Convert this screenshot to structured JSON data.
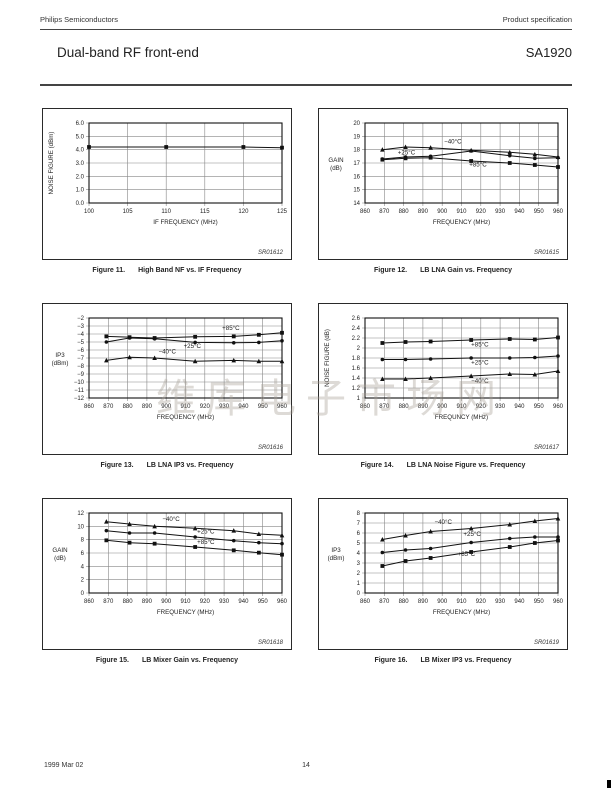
{
  "header": {
    "left": "Philips Semiconductors",
    "right": "Product specification",
    "title": "Dual-band RF front-end",
    "part": "SA1920"
  },
  "footer": {
    "date": "1999 Mar 02",
    "page": "14"
  },
  "watermark": "维库电子市场网",
  "chart_data": [
    {
      "type": "line",
      "figure": "Figure 11.",
      "caption": "High Band NF vs. IF Frequency",
      "code": "SR01612",
      "xlabel": "IF FREQUENCY (MHz)",
      "ylabel": "NOISE FIGURE (dBm)",
      "ylabel_rotated": true,
      "xlim": [
        100,
        125
      ],
      "xticks": [
        100,
        105,
        110,
        115,
        120,
        125
      ],
      "ylim": [
        0,
        6
      ],
      "ytick_vals": [
        0,
        1,
        2,
        3,
        4,
        5,
        6
      ],
      "ytick_labels": [
        "0.0",
        "1.0",
        "2.0",
        "3.0",
        "4.0",
        "5.0",
        "6.0"
      ],
      "grid": true,
      "legend_position": "none",
      "series": [
        {
          "name": "",
          "marker": "square",
          "x": [
            100,
            110,
            120,
            125
          ],
          "y": [
            4.2,
            4.2,
            4.2,
            4.15
          ],
          "label_at": null
        }
      ]
    },
    {
      "type": "line",
      "figure": "Figure 12.",
      "caption": "LB LNA Gain vs. Frequency",
      "code": "SR01615",
      "xlabel": "FREQUENCY (MHz)",
      "ylabel": "GAIN (dB)",
      "ylabel_rotated": false,
      "xlim": [
        860,
        960
      ],
      "xticks": [
        860,
        870,
        880,
        890,
        900,
        910,
        920,
        930,
        940,
        950,
        960
      ],
      "ylim": [
        14,
        20
      ],
      "ytick_vals": [
        14,
        15,
        16,
        17,
        18,
        19,
        20
      ],
      "ytick_labels": [
        "14",
        "15",
        "16",
        "17",
        "18",
        "19",
        "20"
      ],
      "grid": true,
      "legend_position": "inline",
      "series": [
        {
          "name": "−40°C",
          "marker": "triangle",
          "x": [
            869,
            881,
            894,
            915,
            935,
            948,
            960
          ],
          "y": [
            18.0,
            18.2,
            18.15,
            17.95,
            17.8,
            17.65,
            17.45
          ],
          "label_at": [
            901,
            18.45
          ]
        },
        {
          "name": "+25°C",
          "marker": "dot",
          "x": [
            869,
            881,
            894,
            915,
            935,
            948,
            960
          ],
          "y": [
            17.3,
            17.45,
            17.5,
            17.9,
            17.55,
            17.35,
            17.4
          ],
          "label_at": [
            877,
            17.62
          ]
        },
        {
          "name": "+85°C",
          "marker": "square",
          "x": [
            869,
            881,
            894,
            915,
            935,
            948,
            960
          ],
          "y": [
            17.25,
            17.35,
            17.4,
            17.15,
            17.0,
            16.85,
            16.7
          ],
          "label_at": [
            914,
            16.72
          ]
        }
      ]
    },
    {
      "type": "line",
      "figure": "Figure 13.",
      "caption": "LB LNA IP3 vs. Frequency",
      "code": "SR01616",
      "xlabel": "FREQUENCY (MHz)",
      "ylabel": "IP3 (dBm)",
      "ylabel_rotated": false,
      "xlim": [
        860,
        960
      ],
      "xticks": [
        860,
        870,
        880,
        890,
        900,
        910,
        920,
        930,
        940,
        950,
        960
      ],
      "ylim": [
        -12,
        -2
      ],
      "ytick_vals": [
        -12,
        -11,
        -10,
        -9,
        -8,
        -7,
        -6,
        -5,
        -4,
        -3,
        -2
      ],
      "ytick_labels": [
        "−12",
        "−11",
        "−10",
        "−9",
        "−8",
        "−7",
        "−6",
        "−5",
        "−4",
        "−3",
        "−2"
      ],
      "grid": true,
      "legend_position": "inline",
      "series": [
        {
          "name": "+85°C",
          "marker": "square",
          "x": [
            869,
            881,
            894,
            915,
            935,
            948,
            960
          ],
          "y": [
            -4.3,
            -4.4,
            -4.5,
            -4.35,
            -4.3,
            -4.1,
            -3.85
          ],
          "label_at": [
            929,
            -3.5
          ]
        },
        {
          "name": "+25°C",
          "marker": "dot",
          "x": [
            869,
            881,
            894,
            915,
            935,
            948,
            960
          ],
          "y": [
            -5.0,
            -4.5,
            -4.6,
            -5.05,
            -5.1,
            -5.05,
            -4.85
          ],
          "label_at": [
            909,
            -5.75
          ]
        },
        {
          "name": "−40°C",
          "marker": "triangle",
          "x": [
            869,
            881,
            894,
            915,
            935,
            948,
            960
          ],
          "y": [
            -7.3,
            -6.9,
            -7.0,
            -7.4,
            -7.3,
            -7.4,
            -7.4
          ],
          "label_at": [
            896,
            -6.45
          ]
        }
      ]
    },
    {
      "type": "line",
      "figure": "Figure 14.",
      "caption": "LB LNA Noise Figure vs. Frequency",
      "code": "SR01617",
      "xlabel": "FREQUNCY (MHz)",
      "ylabel": "NOISE FIGURE (dB)",
      "ylabel_rotated": true,
      "xlim": [
        860,
        960
      ],
      "xticks": [
        860,
        870,
        880,
        890,
        900,
        910,
        920,
        930,
        940,
        950,
        960
      ],
      "ylim": [
        1,
        2.6
      ],
      "ytick_vals": [
        1,
        1.2,
        1.4,
        1.6,
        1.8,
        2,
        2.2,
        2.4,
        2.6
      ],
      "ytick_labels": [
        "1",
        "1.2",
        "1.4",
        "1.6",
        "1.8",
        "2",
        "2.2",
        "2.4",
        "2.6"
      ],
      "grid": true,
      "legend_position": "inline",
      "series": [
        {
          "name": "+85°C",
          "marker": "square",
          "x": [
            869,
            881,
            894,
            915,
            935,
            948,
            960
          ],
          "y": [
            2.1,
            2.12,
            2.13,
            2.16,
            2.18,
            2.17,
            2.21
          ],
          "label_at": [
            915,
            2.03
          ]
        },
        {
          "name": "+25°C",
          "marker": "dot",
          "x": [
            869,
            881,
            894,
            915,
            935,
            948,
            960
          ],
          "y": [
            1.77,
            1.77,
            1.78,
            1.8,
            1.8,
            1.81,
            1.84
          ],
          "label_at": [
            915,
            1.67
          ]
        },
        {
          "name": "−40°C",
          "marker": "triangle",
          "x": [
            869,
            881,
            894,
            915,
            935,
            948,
            960
          ],
          "y": [
            1.38,
            1.38,
            1.4,
            1.44,
            1.48,
            1.47,
            1.54
          ],
          "label_at": [
            915,
            1.3
          ]
        }
      ]
    },
    {
      "type": "line",
      "figure": "Figure 15.",
      "caption": "LB Mixer Gain vs. Frequency",
      "code": "SR01618",
      "xlabel": "FREQUENCY (MHz)",
      "ylabel": "GAIN (dB)",
      "ylabel_rotated": false,
      "xlim": [
        860,
        960
      ],
      "xticks": [
        860,
        870,
        880,
        890,
        900,
        910,
        920,
        930,
        940,
        950,
        960
      ],
      "ylim": [
        0,
        12
      ],
      "ytick_vals": [
        0,
        2,
        4,
        6,
        8,
        10,
        12
      ],
      "ytick_labels": [
        "0",
        "2",
        "4",
        "6",
        "8",
        "10",
        "12"
      ],
      "grid": true,
      "legend_position": "inline",
      "series": [
        {
          "name": "−40°C",
          "marker": "triangle",
          "x": [
            869,
            881,
            894,
            915,
            935,
            948,
            960
          ],
          "y": [
            10.7,
            10.35,
            10.0,
            9.7,
            9.35,
            8.85,
            8.65
          ],
          "label_at": [
            898,
            10.8
          ]
        },
        {
          "name": "+25°C",
          "marker": "dot",
          "x": [
            869,
            881,
            894,
            915,
            935,
            948,
            960
          ],
          "y": [
            9.35,
            9.0,
            9.0,
            8.4,
            7.85,
            7.55,
            7.4
          ],
          "label_at": [
            916,
            8.9
          ]
        },
        {
          "name": "+85°C",
          "marker": "square",
          "x": [
            869,
            881,
            894,
            915,
            935,
            948,
            960
          ],
          "y": [
            7.9,
            7.55,
            7.4,
            6.9,
            6.4,
            6.05,
            5.75
          ],
          "label_at": [
            916,
            7.35
          ]
        }
      ]
    },
    {
      "type": "line",
      "figure": "Figure 16.",
      "caption": "LB Mixer IP3 vs. Frequency",
      "code": "SR01619",
      "xlabel": "FREQUENCY (MHz)",
      "ylabel": "IP3 (dBm)",
      "ylabel_rotated": false,
      "xlim": [
        860,
        960
      ],
      "xticks": [
        860,
        870,
        880,
        890,
        900,
        910,
        920,
        930,
        940,
        950,
        960
      ],
      "ylim": [
        0,
        8
      ],
      "ytick_vals": [
        0,
        1,
        2,
        3,
        4,
        5,
        6,
        7,
        8
      ],
      "ytick_labels": [
        "0",
        "1",
        "2",
        "3",
        "4",
        "5",
        "6",
        "7",
        "8"
      ],
      "grid": true,
      "legend_position": "inline",
      "series": [
        {
          "name": "−40°C",
          "marker": "triangle",
          "x": [
            869,
            881,
            894,
            915,
            935,
            948,
            960
          ],
          "y": [
            5.35,
            5.75,
            6.15,
            6.45,
            6.85,
            7.2,
            7.45
          ],
          "label_at": [
            896,
            6.9
          ]
        },
        {
          "name": "+25°C",
          "marker": "dot",
          "x": [
            869,
            881,
            894,
            915,
            935,
            948,
            960
          ],
          "y": [
            4.05,
            4.3,
            4.45,
            5.05,
            5.45,
            5.6,
            5.6
          ],
          "label_at": [
            911,
            5.7
          ]
        },
        {
          "name": "+85°C",
          "marker": "square",
          "x": [
            869,
            881,
            894,
            915,
            935,
            948,
            960
          ],
          "y": [
            2.7,
            3.2,
            3.5,
            4.1,
            4.6,
            5.0,
            5.25
          ],
          "label_at": [
            908,
            3.72
          ]
        }
      ]
    }
  ]
}
